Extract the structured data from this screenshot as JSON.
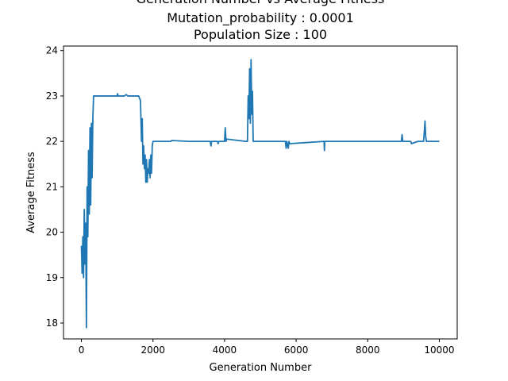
{
  "chart_data": {
    "type": "line",
    "title_lines": [
      "Generation Number vs Average Fitness",
      "Mutation_probability : 0.0001",
      "Population Size : 100"
    ],
    "xlabel": "Generation Number",
    "ylabel": "Average Fitness",
    "xlim": [
      -500,
      10500
    ],
    "ylim": [
      17.65,
      24.1
    ],
    "x_ticks": [
      0,
      2000,
      4000,
      6000,
      8000,
      10000
    ],
    "y_ticks": [
      18,
      19,
      20,
      21,
      22,
      23,
      24
    ],
    "line_color": "#1f77b4",
    "grid": false,
    "legend": "none",
    "series": [
      {
        "x": [
          0,
          20,
          40,
          60,
          80,
          100,
          120,
          140,
          160,
          180,
          200,
          220,
          240,
          260,
          280,
          300,
          320,
          340,
          360,
          400,
          600,
          800,
          1000,
          1010,
          1030,
          1200,
          1250,
          1300,
          1400,
          1600,
          1650,
          1680,
          1700,
          1720,
          1740,
          1760,
          1780,
          1800,
          1820,
          1840,
          1860,
          1880,
          1900,
          1920,
          1940,
          1960,
          1980,
          2000,
          2500,
          2520,
          3000,
          3600,
          3620,
          3640,
          3800,
          3820,
          3840,
          4000,
          4020,
          4040,
          4060,
          4600,
          4640,
          4660,
          4680,
          4700,
          4720,
          4740,
          4760,
          4780,
          4800,
          5500,
          5700,
          5720,
          5740,
          5780,
          5800,
          5820,
          6780,
          6790,
          6800,
          8000,
          8940,
          8960,
          8980,
          9000,
          9200,
          9220,
          9400,
          9560,
          9580,
          9600,
          9620,
          9640,
          9700,
          10000
        ],
        "y": [
          19.7,
          19.1,
          19.9,
          19.0,
          20.5,
          19.3,
          20.2,
          17.9,
          21.0,
          19.9,
          21.8,
          20.4,
          22.3,
          20.6,
          22.4,
          21.2,
          22.5,
          23.0,
          23.0,
          23.0,
          23.0,
          23.0,
          23.0,
          23.05,
          23.0,
          23.0,
          23.03,
          23.0,
          23.0,
          23.0,
          22.9,
          22.0,
          22.5,
          21.5,
          21.9,
          21.4,
          21.7,
          21.1,
          21.6,
          21.1,
          21.4,
          21.3,
          21.6,
          21.2,
          21.7,
          21.3,
          21.9,
          22.0,
          22.0,
          22.02,
          22.0,
          22.0,
          21.9,
          22.0,
          22.0,
          21.95,
          22.0,
          22.0,
          22.3,
          22.0,
          22.05,
          22.0,
          22.0,
          23.0,
          22.5,
          23.6,
          22.4,
          23.8,
          22.6,
          23.1,
          22.0,
          22.0,
          22.0,
          21.85,
          22.0,
          21.85,
          22.0,
          21.95,
          22.0,
          21.8,
          22.0,
          22.0,
          22.0,
          22.15,
          22.0,
          22.0,
          22.0,
          21.95,
          22.0,
          22.0,
          22.2,
          22.45,
          22.1,
          22.0,
          22.0,
          22.0
        ]
      }
    ]
  }
}
